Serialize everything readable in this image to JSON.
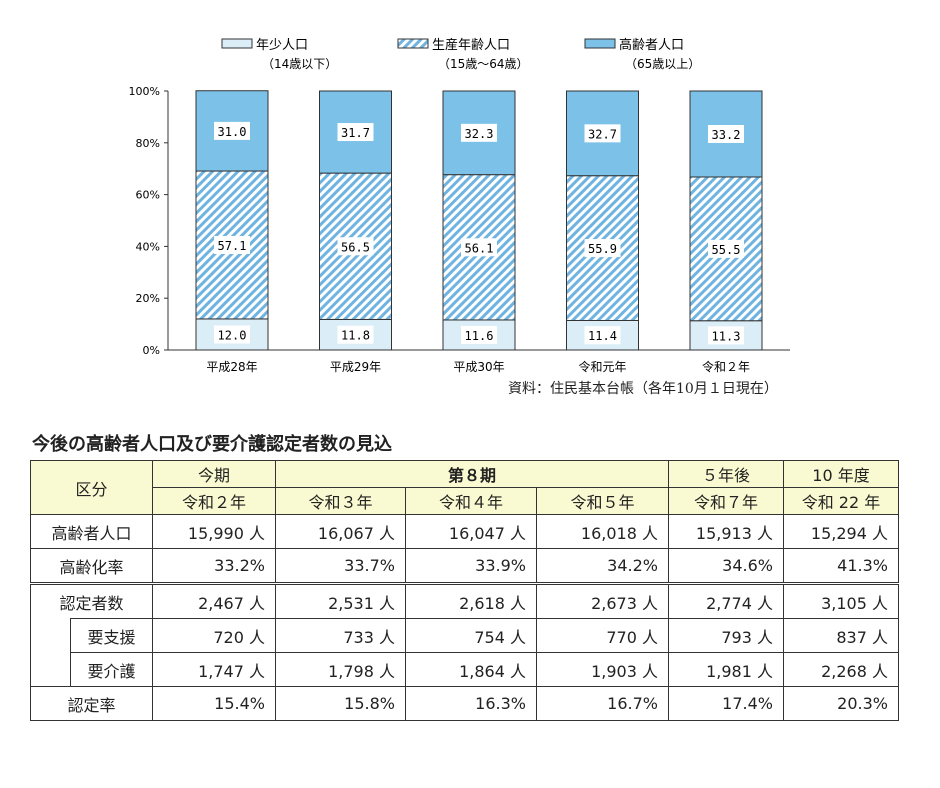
{
  "chart_data": {
    "type": "bar",
    "stacked": true,
    "ylim": [
      0,
      100
    ],
    "yticks": [
      "0%",
      "20%",
      "40%",
      "60%",
      "80%",
      "100%"
    ],
    "categories": [
      "平成28年",
      "平成29年",
      "平成30年",
      "令和元年",
      "令和２年"
    ],
    "series": [
      {
        "name": "年少人口",
        "sub": "（14歳以下）",
        "values": [
          12.0,
          11.8,
          11.6,
          11.4,
          11.3
        ],
        "color": "#dbeef8",
        "pattern": "solid"
      },
      {
        "name": "生産年齢人口",
        "sub": "（15歳～64歳）",
        "values": [
          57.1,
          56.5,
          56.1,
          55.9,
          55.5
        ],
        "color": "#6fb4e0",
        "pattern": "hatch"
      },
      {
        "name": "高齢者人口",
        "sub": "（65歳以上）",
        "values": [
          31.0,
          31.7,
          32.3,
          32.7,
          33.2
        ],
        "color": "#7cc1e8",
        "pattern": "solid"
      }
    ],
    "legend": "top"
  },
  "source": "資料：住民基本台帳（各年10月１日現在）",
  "table": {
    "title": "今後の高齢者人口及び要介護認定者数の見込",
    "h_kubun": "区分",
    "groups": [
      "今期",
      "第８期",
      "５年後",
      "10 年度"
    ],
    "years": [
      "令和２年",
      "令和３年",
      "令和４年",
      "令和５年",
      "令和７年",
      "令和 22 年"
    ],
    "rows": [
      {
        "label": "高齢者人口",
        "values": [
          "15,990 人",
          "16,067 人",
          "16,047 人",
          "16,018 人",
          "15,913 人",
          "15,294 人"
        ]
      },
      {
        "label": "高齢化率",
        "values": [
          "33.2%",
          "33.7%",
          "33.9%",
          "34.2%",
          "34.6%",
          "41.3%"
        ]
      },
      {
        "label": "認定者数",
        "values": [
          "2,467 人",
          "2,531 人",
          "2,618 人",
          "2,673 人",
          "2,774 人",
          "3,105 人"
        ]
      },
      {
        "label": "要支援",
        "values": [
          "720 人",
          "733 人",
          "754 人",
          "770 人",
          "793 人",
          "837 人"
        ]
      },
      {
        "label": "要介護",
        "values": [
          "1,747 人",
          "1,798 人",
          "1,864 人",
          "1,903 人",
          "1,981 人",
          "2,268 人"
        ]
      },
      {
        "label": "認定率",
        "values": [
          "15.4%",
          "15.8%",
          "16.3%",
          "16.7%",
          "17.4%",
          "20.3%"
        ]
      }
    ]
  }
}
